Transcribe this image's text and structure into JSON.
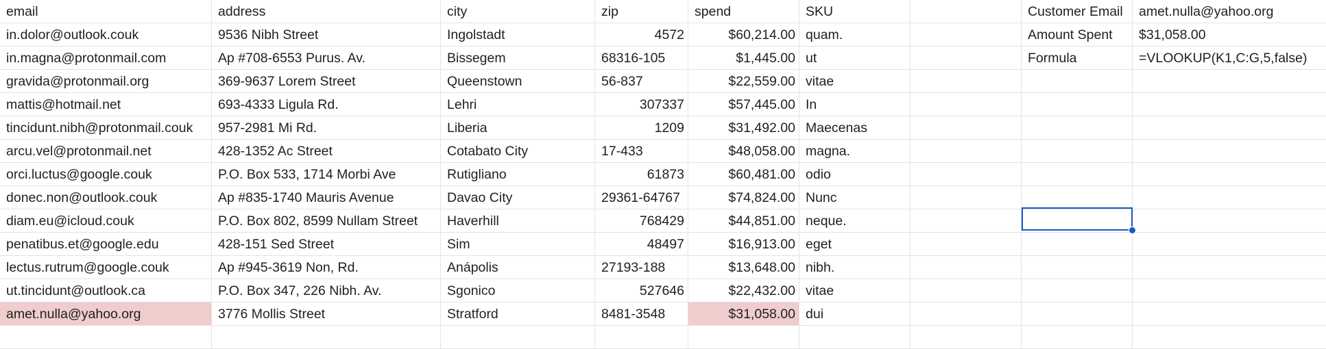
{
  "headers": [
    "email",
    "address",
    "city",
    "zip",
    "spend",
    "SKU"
  ],
  "rows": [
    {
      "email": "in.dolor@outlook.couk",
      "address": "9536 Nibh Street",
      "city": "Ingolstadt",
      "zip": "4572",
      "zip_numeric": true,
      "spend": "$60,214.00",
      "sku": "quam."
    },
    {
      "email": "in.magna@protonmail.com",
      "address": "Ap #708-6553 Purus. Av.",
      "city": "Bissegem",
      "zip": "68316-105",
      "zip_numeric": false,
      "spend": "$1,445.00",
      "sku": "ut"
    },
    {
      "email": "gravida@protonmail.org",
      "address": "369-9637 Lorem Street",
      "city": "Queenstown",
      "zip": "56-837",
      "zip_numeric": false,
      "spend": "$22,559.00",
      "sku": "vitae"
    },
    {
      "email": "mattis@hotmail.net",
      "address": "693-4333 Ligula Rd.",
      "city": "Lehri",
      "zip": "307337",
      "zip_numeric": true,
      "spend": "$57,445.00",
      "sku": "In"
    },
    {
      "email": "tincidunt.nibh@protonmail.couk",
      "address": "957-2981 Mi Rd.",
      "city": "Liberia",
      "zip": "1209",
      "zip_numeric": true,
      "spend": "$31,492.00",
      "sku": "Maecenas"
    },
    {
      "email": "arcu.vel@protonmail.net",
      "address": "428-1352 Ac Street",
      "city": "Cotabato City",
      "zip": "17-433",
      "zip_numeric": false,
      "spend": "$48,058.00",
      "sku": "magna."
    },
    {
      "email": "orci.luctus@google.couk",
      "address": "P.O. Box 533, 1714 Morbi Ave",
      "city": "Rutigliano",
      "zip": "61873",
      "zip_numeric": true,
      "spend": "$60,481.00",
      "sku": "odio"
    },
    {
      "email": "donec.non@outlook.couk",
      "address": "Ap #835-1740 Mauris Avenue",
      "city": "Davao City",
      "zip": "29361-64767",
      "zip_numeric": false,
      "spend": "$74,824.00",
      "sku": "Nunc"
    },
    {
      "email": "diam.eu@icloud.couk",
      "address": "P.O. Box 802, 8599 Nullam Street",
      "city": "Haverhill",
      "zip": "768429",
      "zip_numeric": true,
      "spend": "$44,851.00",
      "sku": "neque."
    },
    {
      "email": "penatibus.et@google.edu",
      "address": "428-151 Sed Street",
      "city": "Sim",
      "zip": "48497",
      "zip_numeric": true,
      "spend": "$16,913.00",
      "sku": "eget"
    },
    {
      "email": "lectus.rutrum@google.couk",
      "address": "Ap #945-3619 Non, Rd.",
      "city": "Anápolis",
      "zip": "27193-188",
      "zip_numeric": false,
      "spend": "$13,648.00",
      "sku": "nibh."
    },
    {
      "email": "ut.tincidunt@outlook.ca",
      "address": "P.O. Box 347, 226 Nibh. Av.",
      "city": "Sgonico",
      "zip": "527646",
      "zip_numeric": true,
      "spend": "$22,432.00",
      "sku": "vitae"
    },
    {
      "email": "amet.nulla@yahoo.org",
      "address": "3776 Mollis Street",
      "city": "Stratford",
      "zip": "8481-3548",
      "zip_numeric": false,
      "spend": "$31,058.00",
      "sku": "dui",
      "highlighted": true
    }
  ],
  "lookup": [
    {
      "label": "Customer Email",
      "value": "amet.nulla@yahoo.org"
    },
    {
      "label": "Amount Spent",
      "value": "$31,058.00"
    },
    {
      "label": "Formula",
      "value": "=VLOOKUP(K1,C:G,5,false)"
    }
  ],
  "colors": {
    "highlight": "#f0cccc",
    "selection": "#1a56c4",
    "gridline": "#e2e3e3"
  }
}
